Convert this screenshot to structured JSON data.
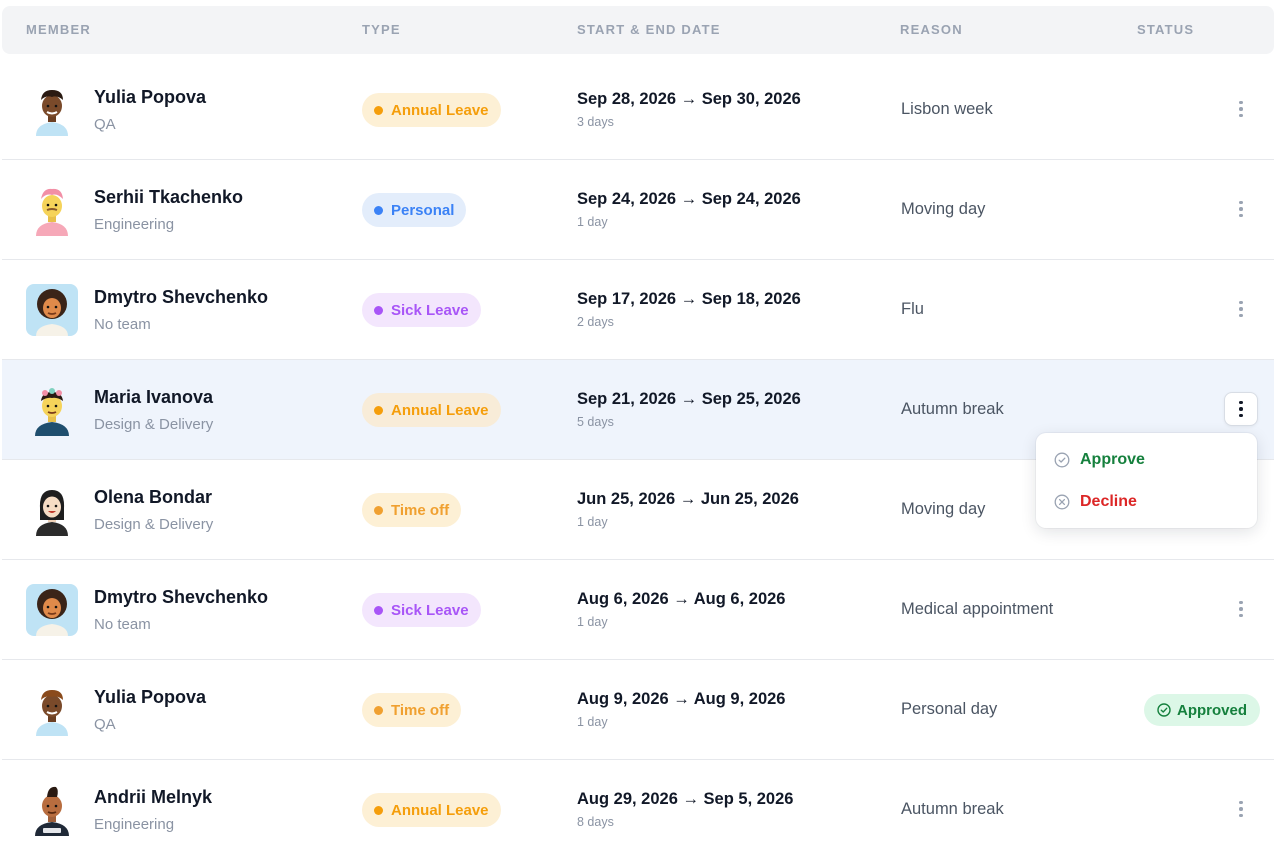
{
  "headers": {
    "member": "MEMBER",
    "type": "TYPE",
    "dates": "START & END DATE",
    "reason": "REASON",
    "status": "STATUS"
  },
  "rows": [
    {
      "name": "Yulia Popova",
      "team": "QA",
      "type": "Annual Leave",
      "dates": "Sep 28, 2026 → Sep 30, 2026",
      "duration": "3 days",
      "reason": "Lisbon week",
      "avatar_icon": "avatar-dark-skin-icon"
    },
    {
      "name": "Serhii Tkachenko",
      "team": "Engineering",
      "type": "Personal",
      "dates": "Sep 24, 2026 → Sep 24, 2026",
      "duration": "1 day",
      "reason": "Moving day",
      "avatar_icon": "avatar-pink-hair-icon"
    },
    {
      "name": "Dmytro Shevchenko",
      "team": "No team",
      "type": "Sick Leave",
      "dates": "Sep 17, 2026 → Sep 18, 2026",
      "duration": "2 days",
      "reason": "Flu",
      "avatar_icon": "avatar-curly-hair-icon"
    },
    {
      "name": "Maria Ivanova",
      "team": "Design & Delivery",
      "type": "Annual Leave",
      "dates": "Sep 21, 2026 → Sep 25, 2026",
      "duration": "5 days",
      "reason": "Autumn break",
      "avatar_icon": "avatar-flower-hair-icon"
    },
    {
      "name": "Olena Bondar",
      "team": "Design & Delivery",
      "type": "Time off",
      "dates": "Jun 25, 2026 → Jun 25, 2026",
      "duration": "1 day",
      "reason": "Moving day",
      "avatar_icon": "avatar-dark-hair-icon"
    },
    {
      "name": "Dmytro Shevchenko",
      "team": "No team",
      "type": "Sick Leave",
      "dates": "Aug 6, 2026 → Aug 6, 2026",
      "duration": "1 day",
      "reason": "Medical appointment",
      "avatar_icon": "avatar-curly-hair-icon"
    },
    {
      "name": "Yulia Popova",
      "team": "QA",
      "type": "Time off",
      "dates": "Aug 9, 2026 → Aug 9, 2026",
      "duration": "1 day",
      "reason": "Personal day",
      "status": "Approved",
      "avatar_icon": "avatar-dark-skin-icon"
    },
    {
      "name": "Andrii Melnyk",
      "team": "Engineering",
      "type": "Annual Leave",
      "dates": "Aug 29, 2026 → Sep 5, 2026",
      "duration": "8 days",
      "reason": "Autumn break",
      "avatar_icon": "avatar-mohawk-icon"
    }
  ],
  "menu": {
    "approve": "Approve",
    "decline": "Decline"
  },
  "colors": {
    "annual_leave": "#f59e0b",
    "personal": "#3b82f6",
    "sick_leave": "#a855f7",
    "time_off": "#f0a030",
    "approved": "#15803d",
    "decline": "#dc2626"
  }
}
